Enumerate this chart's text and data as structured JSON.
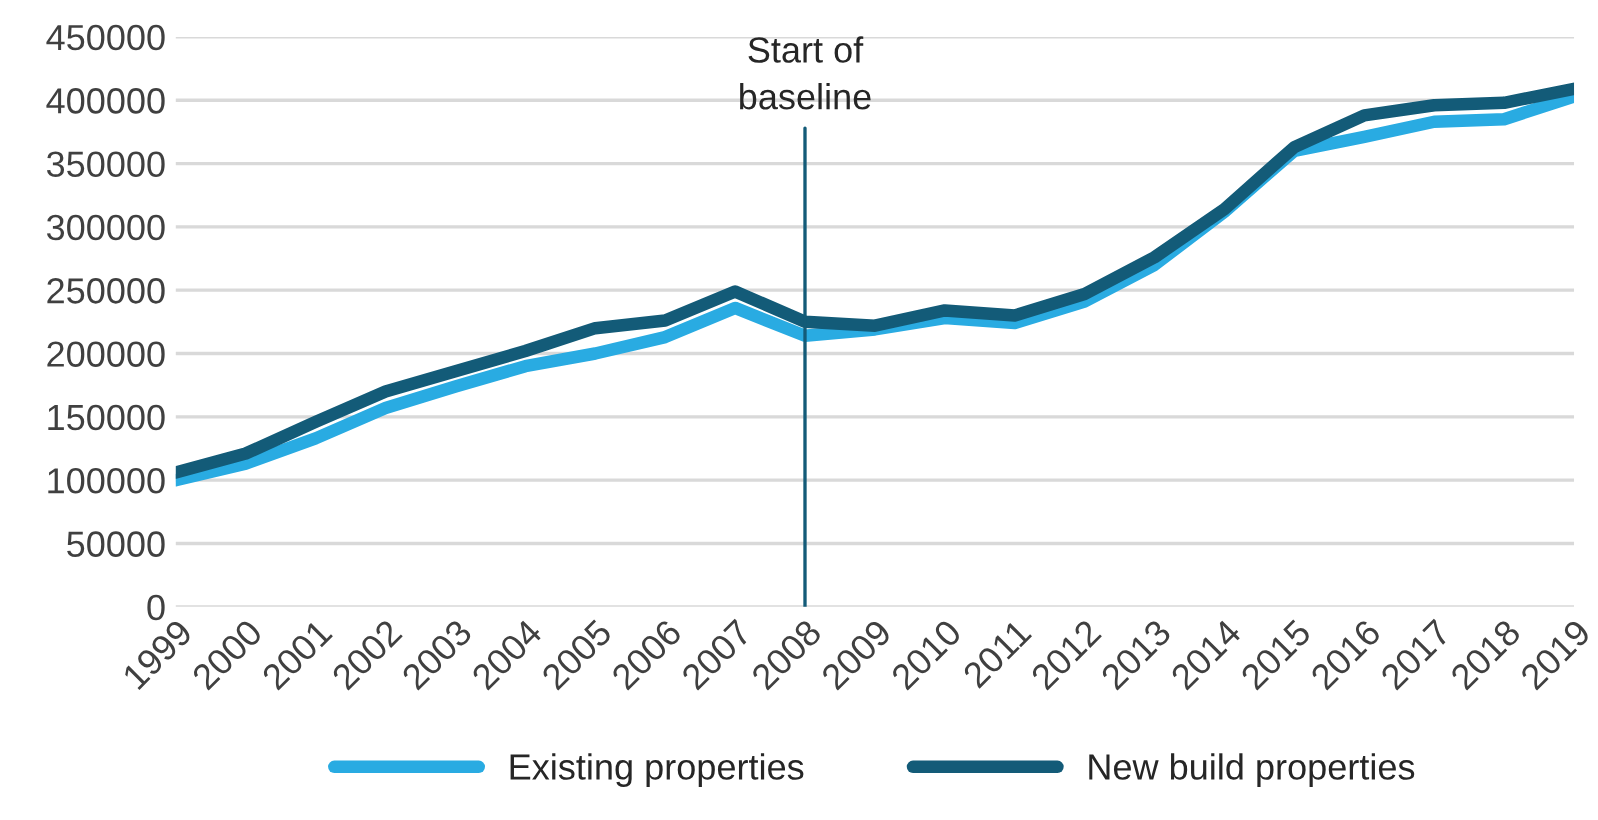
{
  "chart_data": {
    "type": "line",
    "categories": [
      "1999",
      "2000",
      "2001",
      "2002",
      "2003",
      "2004",
      "2005",
      "2006",
      "2007",
      "2008",
      "2009",
      "2010",
      "2011",
      "2012",
      "2013",
      "2014",
      "2015",
      "2016",
      "2017",
      "2018",
      "2019"
    ],
    "series": [
      {
        "name": "Existing properties",
        "color": "#29abe2",
        "values": [
          100000,
          113000,
          133000,
          157000,
          174000,
          190000,
          200000,
          213000,
          236000,
          214000,
          219000,
          228000,
          224000,
          241000,
          270000,
          312000,
          360000,
          371000,
          383000,
          385000,
          403000
        ]
      },
      {
        "name": "New build properties",
        "color": "#135b78",
        "values": [
          106000,
          121000,
          146000,
          170000,
          186000,
          202000,
          220000,
          226000,
          249000,
          225000,
          222000,
          234000,
          230000,
          247000,
          276000,
          314000,
          363000,
          388000,
          396000,
          398000,
          409000
        ]
      }
    ],
    "ylim": [
      0,
      450000
    ],
    "yticks": [
      0,
      50000,
      100000,
      150000,
      200000,
      250000,
      300000,
      350000,
      400000,
      450000
    ],
    "grid": "y",
    "legend": "bottom",
    "line_style": "solid",
    "ref_lines": [
      {
        "axis": "x",
        "value": "2008",
        "label": "Start of\nbaseline",
        "color": "#135b78"
      }
    ]
  }
}
